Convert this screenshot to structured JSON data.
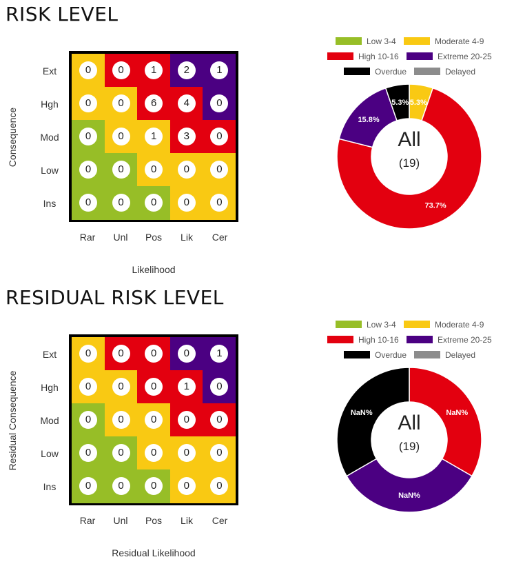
{
  "colors": {
    "low": "#97be27",
    "moderate": "#f9c913",
    "high": "#e3000f",
    "extreme": "#4b0082",
    "overdue": "#000000",
    "delayed": "#8c8c8c"
  },
  "legend": {
    "low": "Low 3-4",
    "moderate": "Moderate 4-9",
    "high": "High 10-16",
    "extreme": "Extreme 20-25",
    "overdue": "Overdue",
    "delayed": "Delayed"
  },
  "chart_data": [
    {
      "type": "heatmap",
      "title": "RISK LEVEL",
      "xlabel": "Likelihood",
      "ylabel": "Consequence",
      "x_categories": [
        "Rar",
        "Unl",
        "Pos",
        "Lik",
        "Cer"
      ],
      "y_categories": [
        "Ext",
        "Hgh",
        "Mod",
        "Low",
        "Ins"
      ],
      "values": [
        [
          0,
          0,
          1,
          2,
          1
        ],
        [
          0,
          0,
          6,
          4,
          0
        ],
        [
          0,
          0,
          1,
          3,
          0
        ],
        [
          0,
          0,
          0,
          0,
          0
        ],
        [
          0,
          0,
          0,
          0,
          0
        ]
      ],
      "cell_levels": [
        [
          "moderate",
          "high",
          "high",
          "extreme",
          "extreme"
        ],
        [
          "moderate",
          "moderate",
          "high",
          "high",
          "extreme"
        ],
        [
          "low",
          "moderate",
          "moderate",
          "high",
          "high"
        ],
        [
          "low",
          "low",
          "moderate",
          "moderate",
          "moderate"
        ],
        [
          "low",
          "low",
          "low",
          "moderate",
          "moderate"
        ]
      ]
    },
    {
      "type": "pie",
      "donut": true,
      "center_label": "All",
      "center_count": "(19)",
      "slices": [
        {
          "category": "moderate",
          "value": 5.3,
          "label": "5.3%"
        },
        {
          "category": "high",
          "value": 73.7,
          "label": "73.7%"
        },
        {
          "category": "extreme",
          "value": 15.8,
          "label": "15.8%"
        },
        {
          "category": "overdue",
          "value": 5.3,
          "label": "5.3%"
        }
      ]
    },
    {
      "type": "heatmap",
      "title": "RESIDUAL RISK LEVEL",
      "xlabel": "Residual Likelihood",
      "ylabel": "Residual Consequence",
      "x_categories": [
        "Rar",
        "Unl",
        "Pos",
        "Lik",
        "Cer"
      ],
      "y_categories": [
        "Ext",
        "Hgh",
        "Mod",
        "Low",
        "Ins"
      ],
      "values": [
        [
          0,
          0,
          0,
          0,
          1
        ],
        [
          0,
          0,
          0,
          1,
          0
        ],
        [
          0,
          0,
          0,
          0,
          0
        ],
        [
          0,
          0,
          0,
          0,
          0
        ],
        [
          0,
          0,
          0,
          0,
          0
        ]
      ],
      "cell_levels": [
        [
          "moderate",
          "high",
          "high",
          "extreme",
          "extreme"
        ],
        [
          "moderate",
          "moderate",
          "high",
          "high",
          "extreme"
        ],
        [
          "low",
          "moderate",
          "moderate",
          "high",
          "high"
        ],
        [
          "low",
          "low",
          "moderate",
          "moderate",
          "moderate"
        ],
        [
          "low",
          "low",
          "low",
          "moderate",
          "moderate"
        ]
      ]
    },
    {
      "type": "pie",
      "donut": true,
      "center_label": "All",
      "center_count": "(19)",
      "slices": [
        {
          "category": "high",
          "value": 1,
          "label": "NaN%"
        },
        {
          "category": "extreme",
          "value": 1,
          "label": "NaN%"
        },
        {
          "category": "overdue",
          "value": 1,
          "label": "NaN%"
        }
      ]
    }
  ]
}
